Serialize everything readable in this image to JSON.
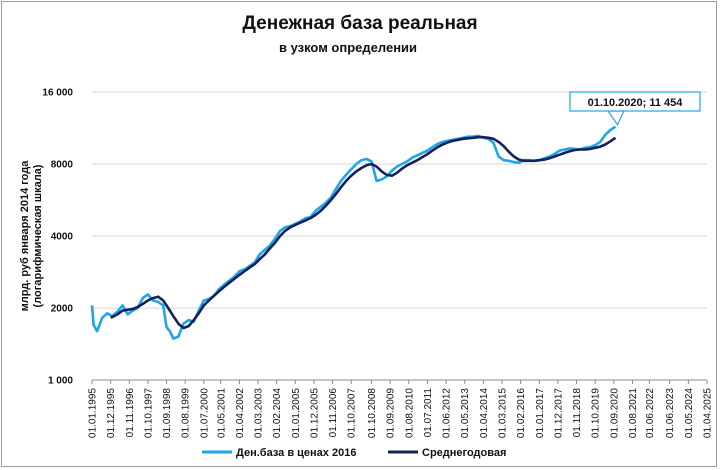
{
  "chart_data": {
    "type": "line",
    "title": "Денежная база реальная",
    "subtitle": "в узком определении",
    "ylabel_line1": "млрд. руб января 2014 года",
    "ylabel_line2": "(логарифмическая шкала)",
    "yscale": "log",
    "ylim": [
      1000,
      16000
    ],
    "yticks": [
      1000,
      2000,
      4000,
      8000,
      16000
    ],
    "ytick_labels": [
      "1 000",
      "2000",
      "4000",
      "8000",
      "16 000"
    ],
    "xlim": [
      1995.0,
      2025.25
    ],
    "xticks": [
      1995.0,
      1995.917,
      1996.833,
      1997.75,
      1998.667,
      1999.583,
      2000.5,
      2001.333,
      2002.25,
      2003.167,
      2004.083,
      2005.0,
      2005.917,
      2006.833,
      2007.75,
      2008.75,
      2009.667,
      2010.583,
      2011.5,
      2012.417,
      2013.333,
      2014.25,
      2015.167,
      2016.083,
      2017.0,
      2017.917,
      2018.833,
      2019.75,
      2020.667,
      2021.583,
      2022.417,
      2023.417,
      2024.333,
      2025.25
    ],
    "xtick_labels": [
      "01.01.1995",
      "01.12.1995",
      "01.11.1996",
      "01.10.1997",
      "01.09.1998",
      "01.08.1999",
      "01.07.2000",
      "01.05.2001",
      "01.04.2002",
      "01.03.2003",
      "01.02.2004",
      "01.01.2005",
      "01.12.2005",
      "01.11.2006",
      "01.10.2007",
      "01.10.2008",
      "01.09.2009",
      "01.08.2010",
      "01.07.2011",
      "01.06.2012",
      "01.05.2013",
      "01.04.2014",
      "01.03.2015",
      "01.02.2016",
      "01.01.2017",
      "01.12.2017",
      "01.11.2018",
      "01.10.2019",
      "01.09.2020",
      "01.08.2021",
      "01.06.2022",
      "01.06.2023",
      "01.05.2024",
      "01.04.2025"
    ],
    "legend_position": "bottom",
    "grid": "horizontal",
    "series": [
      {
        "name": "Ден.база в ценах 2016",
        "color": "#1ea6e6",
        "points": [
          [
            1995.0,
            2050
          ],
          [
            1995.08,
            1700
          ],
          [
            1995.25,
            1600
          ],
          [
            1995.5,
            1820
          ],
          [
            1995.75,
            1900
          ],
          [
            1996.0,
            1850
          ],
          [
            1996.25,
            1930
          ],
          [
            1996.5,
            2050
          ],
          [
            1996.75,
            1880
          ],
          [
            1997.0,
            1950
          ],
          [
            1997.25,
            2000
          ],
          [
            1997.5,
            2200
          ],
          [
            1997.75,
            2280
          ],
          [
            1998.0,
            2150
          ],
          [
            1998.25,
            2120
          ],
          [
            1998.5,
            2050
          ],
          [
            1998.67,
            1660
          ],
          [
            1998.83,
            1600
          ],
          [
            1999.0,
            1490
          ],
          [
            1999.25,
            1520
          ],
          [
            1999.5,
            1720
          ],
          [
            1999.75,
            1780
          ],
          [
            2000.0,
            1750
          ],
          [
            2000.25,
            1950
          ],
          [
            2000.5,
            2150
          ],
          [
            2000.75,
            2180
          ],
          [
            2001.0,
            2250
          ],
          [
            2001.25,
            2400
          ],
          [
            2001.5,
            2500
          ],
          [
            2001.75,
            2600
          ],
          [
            2002.0,
            2700
          ],
          [
            2002.25,
            2850
          ],
          [
            2002.5,
            2900
          ],
          [
            2002.75,
            3000
          ],
          [
            2003.0,
            3100
          ],
          [
            2003.25,
            3350
          ],
          [
            2003.5,
            3500
          ],
          [
            2003.75,
            3650
          ],
          [
            2004.0,
            3900
          ],
          [
            2004.25,
            4200
          ],
          [
            2004.5,
            4350
          ],
          [
            2004.75,
            4400
          ],
          [
            2005.0,
            4500
          ],
          [
            2005.25,
            4600
          ],
          [
            2005.5,
            4750
          ],
          [
            2005.75,
            4800
          ],
          [
            2006.0,
            5100
          ],
          [
            2006.25,
            5300
          ],
          [
            2006.5,
            5500
          ],
          [
            2006.75,
            5800
          ],
          [
            2007.0,
            6300
          ],
          [
            2007.25,
            6800
          ],
          [
            2007.5,
            7200
          ],
          [
            2007.75,
            7600
          ],
          [
            2008.0,
            8000
          ],
          [
            2008.25,
            8300
          ],
          [
            2008.5,
            8400
          ],
          [
            2008.75,
            8200
          ],
          [
            2009.0,
            6800
          ],
          [
            2009.25,
            6900
          ],
          [
            2009.5,
            7100
          ],
          [
            2009.75,
            7500
          ],
          [
            2010.0,
            7800
          ],
          [
            2010.25,
            8000
          ],
          [
            2010.5,
            8200
          ],
          [
            2010.75,
            8500
          ],
          [
            2011.0,
            8700
          ],
          [
            2011.25,
            8900
          ],
          [
            2011.5,
            9100
          ],
          [
            2011.75,
            9400
          ],
          [
            2012.0,
            9700
          ],
          [
            2012.25,
            9900
          ],
          [
            2012.5,
            10000
          ],
          [
            2012.75,
            10100
          ],
          [
            2013.0,
            10200
          ],
          [
            2013.25,
            10300
          ],
          [
            2013.5,
            10400
          ],
          [
            2013.75,
            10400
          ],
          [
            2014.0,
            10500
          ],
          [
            2014.25,
            10300
          ],
          [
            2014.5,
            10200
          ],
          [
            2014.75,
            9800
          ],
          [
            2015.0,
            8600
          ],
          [
            2015.25,
            8300
          ],
          [
            2015.5,
            8250
          ],
          [
            2015.75,
            8150
          ],
          [
            2016.0,
            8100
          ],
          [
            2016.25,
            8300
          ],
          [
            2016.5,
            8300
          ],
          [
            2016.75,
            8250
          ],
          [
            2017.0,
            8300
          ],
          [
            2017.25,
            8450
          ],
          [
            2017.5,
            8600
          ],
          [
            2017.75,
            8800
          ],
          [
            2018.0,
            9100
          ],
          [
            2018.25,
            9200
          ],
          [
            2018.5,
            9300
          ],
          [
            2018.75,
            9250
          ],
          [
            2019.0,
            9200
          ],
          [
            2019.25,
            9350
          ],
          [
            2019.5,
            9400
          ],
          [
            2019.75,
            9600
          ],
          [
            2020.0,
            9900
          ],
          [
            2020.25,
            10600
          ],
          [
            2020.5,
            11100
          ],
          [
            2020.75,
            11454
          ]
        ]
      },
      {
        "name": "Среднегодовая",
        "color": "#16215c",
        "points": [
          [
            1995.92,
            1820
          ],
          [
            1996.25,
            1880
          ],
          [
            1996.5,
            1950
          ],
          [
            1997.0,
            1980
          ],
          [
            1997.25,
            2020
          ],
          [
            1997.5,
            2080
          ],
          [
            1997.75,
            2150
          ],
          [
            1998.0,
            2200
          ],
          [
            1998.25,
            2230
          ],
          [
            1998.5,
            2150
          ],
          [
            1998.75,
            2000
          ],
          [
            1999.0,
            1850
          ],
          [
            1999.25,
            1720
          ],
          [
            1999.5,
            1650
          ],
          [
            1999.75,
            1680
          ],
          [
            2000.0,
            1780
          ],
          [
            2000.25,
            1900
          ],
          [
            2000.5,
            2050
          ],
          [
            2000.75,
            2150
          ],
          [
            2001.0,
            2250
          ],
          [
            2001.25,
            2350
          ],
          [
            2001.5,
            2450
          ],
          [
            2001.75,
            2550
          ],
          [
            2002.0,
            2650
          ],
          [
            2002.25,
            2750
          ],
          [
            2002.5,
            2850
          ],
          [
            2002.75,
            2950
          ],
          [
            2003.0,
            3050
          ],
          [
            2003.25,
            3200
          ],
          [
            2003.5,
            3350
          ],
          [
            2003.75,
            3550
          ],
          [
            2004.0,
            3750
          ],
          [
            2004.25,
            4000
          ],
          [
            2004.5,
            4200
          ],
          [
            2004.75,
            4350
          ],
          [
            2005.0,
            4450
          ],
          [
            2005.25,
            4550
          ],
          [
            2005.5,
            4650
          ],
          [
            2005.75,
            4750
          ],
          [
            2006.0,
            4900
          ],
          [
            2006.25,
            5100
          ],
          [
            2006.5,
            5350
          ],
          [
            2006.75,
            5650
          ],
          [
            2007.0,
            6000
          ],
          [
            2007.25,
            6400
          ],
          [
            2007.5,
            6800
          ],
          [
            2007.75,
            7150
          ],
          [
            2008.0,
            7450
          ],
          [
            2008.25,
            7700
          ],
          [
            2008.5,
            7900
          ],
          [
            2008.75,
            8000
          ],
          [
            2009.0,
            7800
          ],
          [
            2009.25,
            7450
          ],
          [
            2009.5,
            7200
          ],
          [
            2009.75,
            7150
          ],
          [
            2010.0,
            7350
          ],
          [
            2010.25,
            7650
          ],
          [
            2010.5,
            7900
          ],
          [
            2010.75,
            8100
          ],
          [
            2011.0,
            8300
          ],
          [
            2011.25,
            8550
          ],
          [
            2011.5,
            8800
          ],
          [
            2011.75,
            9100
          ],
          [
            2012.0,
            9400
          ],
          [
            2012.25,
            9650
          ],
          [
            2012.5,
            9850
          ],
          [
            2012.75,
            10000
          ],
          [
            2013.0,
            10100
          ],
          [
            2013.25,
            10200
          ],
          [
            2013.5,
            10250
          ],
          [
            2013.75,
            10300
          ],
          [
            2014.0,
            10350
          ],
          [
            2014.25,
            10350
          ],
          [
            2014.5,
            10300
          ],
          [
            2014.75,
            10200
          ],
          [
            2015.0,
            9900
          ],
          [
            2015.25,
            9500
          ],
          [
            2015.5,
            9000
          ],
          [
            2015.75,
            8600
          ],
          [
            2016.0,
            8350
          ],
          [
            2016.25,
            8250
          ],
          [
            2016.5,
            8250
          ],
          [
            2016.75,
            8250
          ],
          [
            2017.0,
            8300
          ],
          [
            2017.25,
            8350
          ],
          [
            2017.5,
            8450
          ],
          [
            2017.75,
            8600
          ],
          [
            2018.0,
            8750
          ],
          [
            2018.25,
            8900
          ],
          [
            2018.5,
            9050
          ],
          [
            2018.75,
            9150
          ],
          [
            2019.0,
            9200
          ],
          [
            2019.25,
            9200
          ],
          [
            2019.5,
            9250
          ],
          [
            2019.75,
            9350
          ],
          [
            2020.0,
            9450
          ],
          [
            2020.25,
            9650
          ],
          [
            2020.5,
            9950
          ],
          [
            2020.75,
            10300
          ]
        ]
      }
    ],
    "annotation": {
      "text": "01.10.2020;  11 454",
      "x": 2020.75,
      "y": 11454
    }
  }
}
